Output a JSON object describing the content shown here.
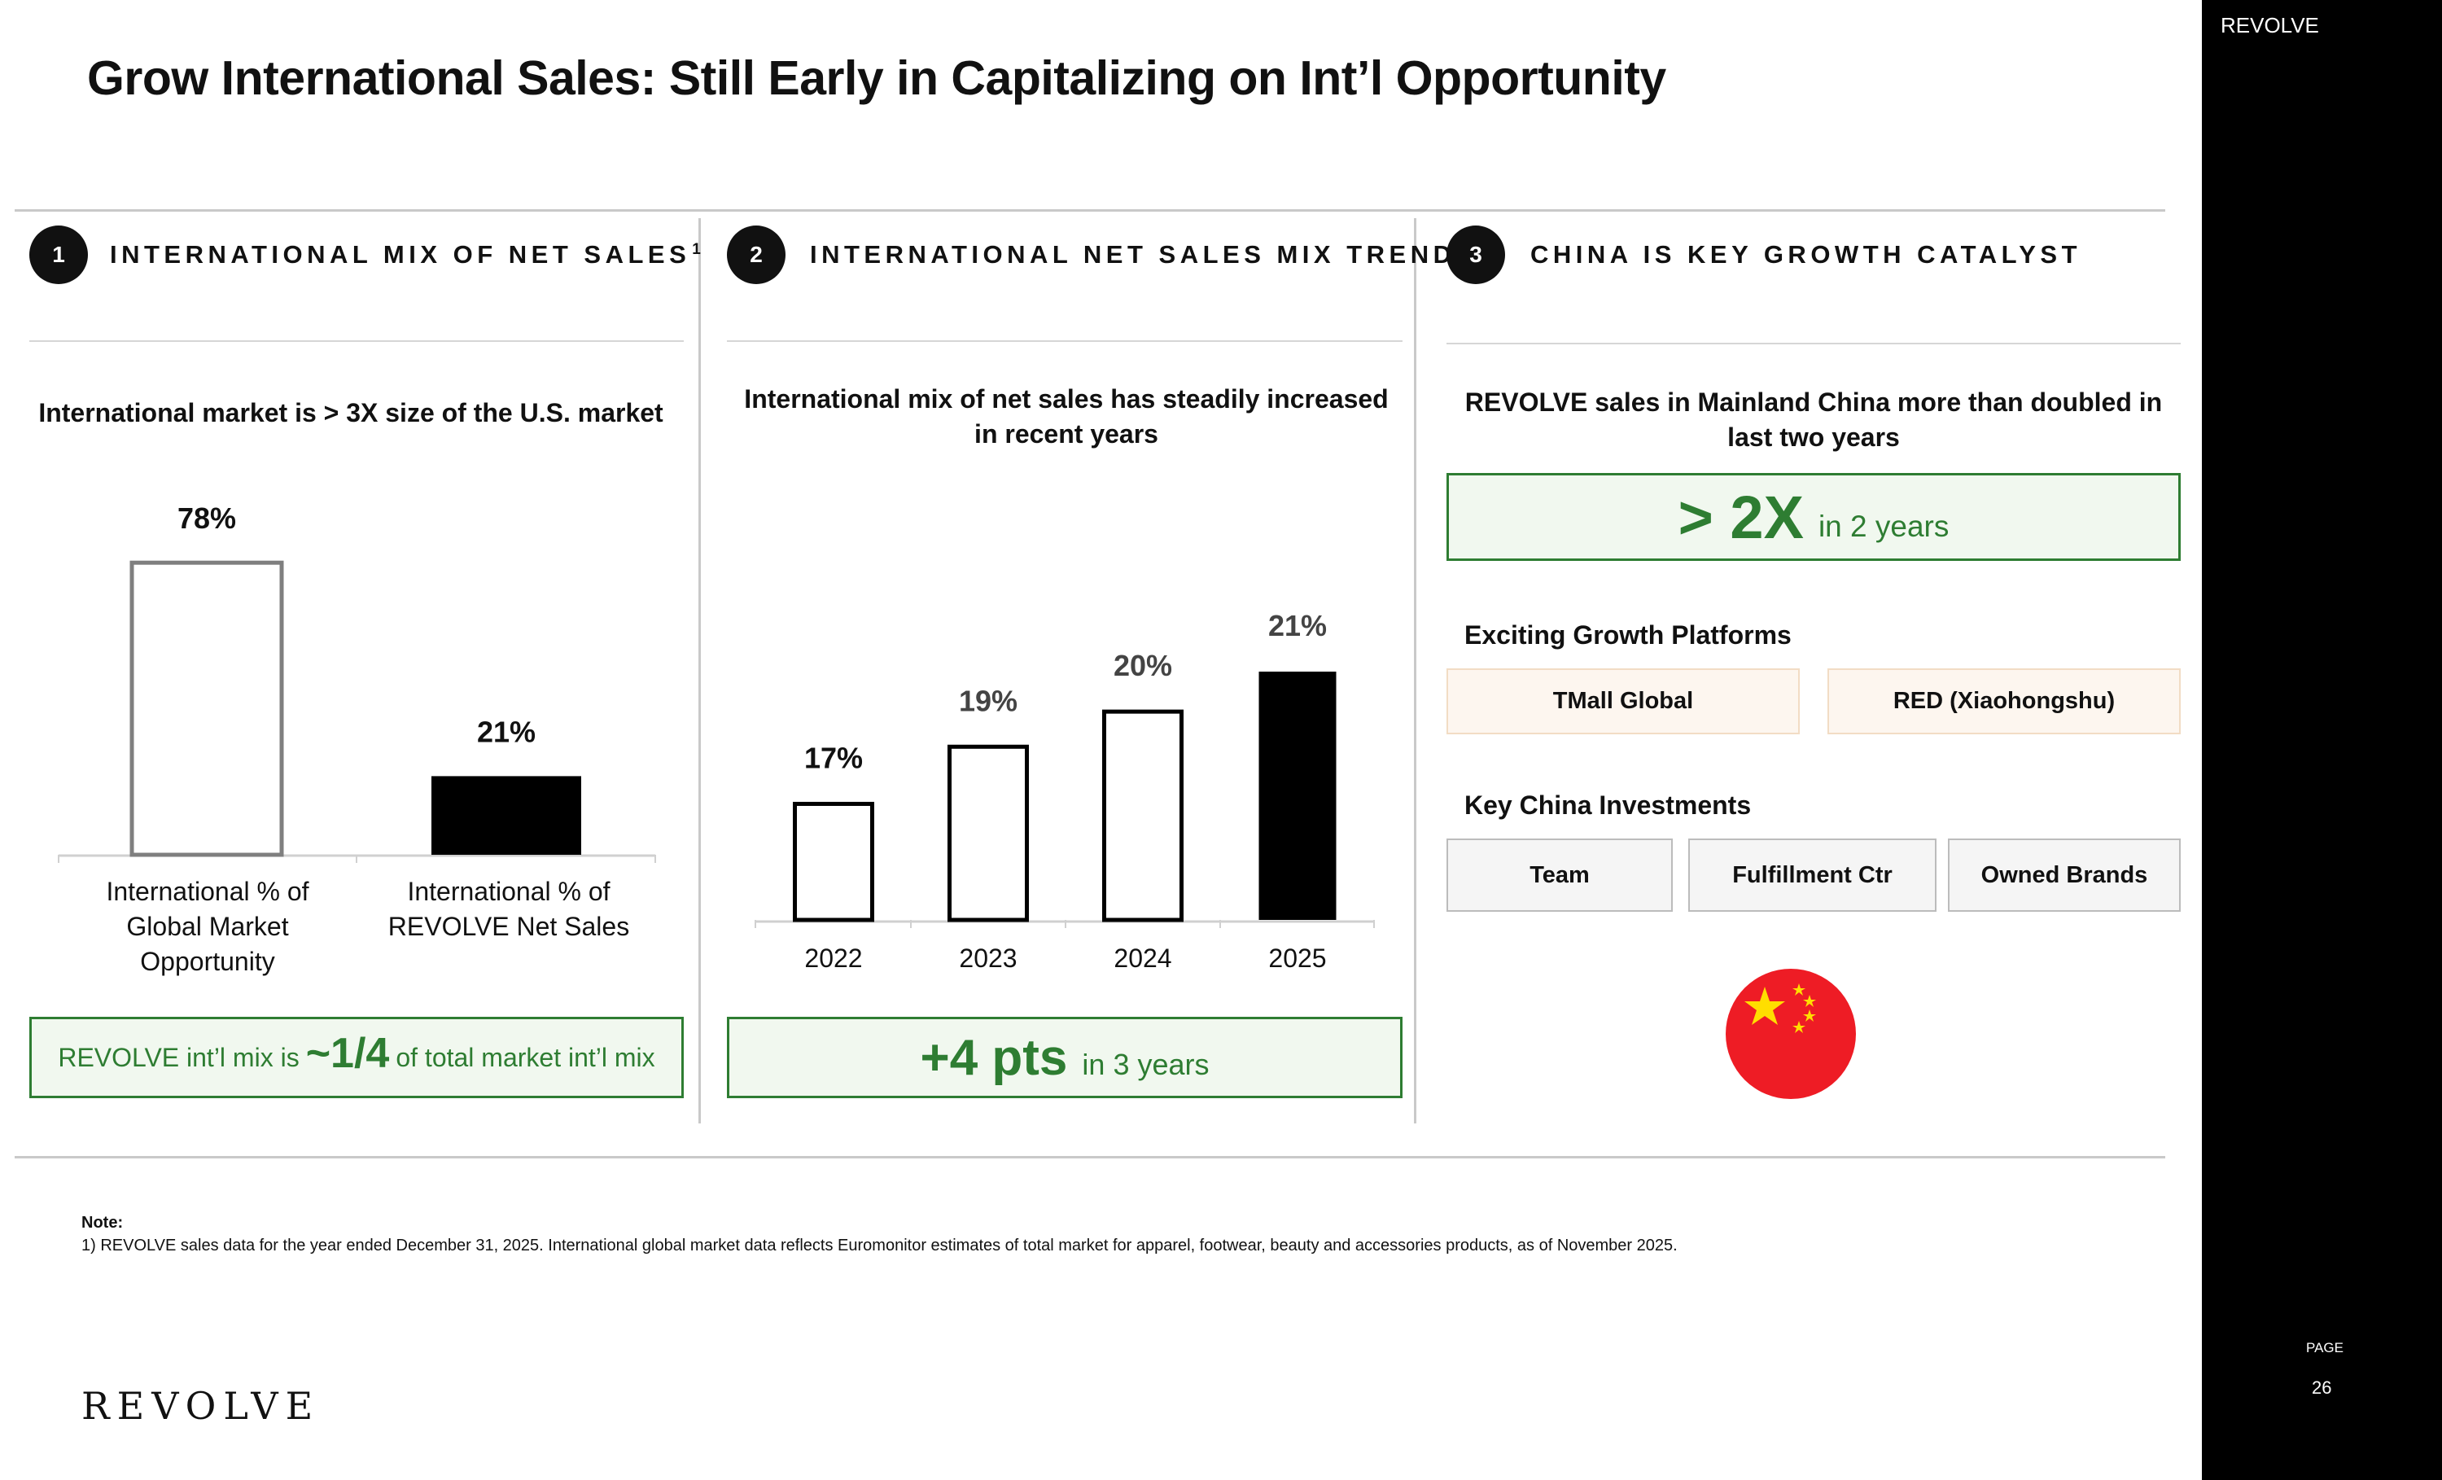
{
  "title": "Grow International Sales: Still Early in Capitalizing on Int’l Opportunity",
  "sidebar": {
    "brand": "REVOLVE",
    "page_label": "PAGE",
    "page_number": "26"
  },
  "sections": [
    {
      "number": "1",
      "heading": "INTERNATIONAL MIX OF NET SALES",
      "heading_footnote": "1",
      "subtitle": "International market is > 3X size of the U.S. market",
      "callout": {
        "prefix": "REVOLVE int’l mix is",
        "emphasis": "~1/4",
        "suffix": "of total market int’l mix"
      }
    },
    {
      "number": "2",
      "heading": "INTERNATIONAL NET SALES MIX TREND",
      "subtitle": "International mix of net sales has steadily increased in recent years",
      "callout": {
        "emphasis": "+4 pts",
        "suffix": "in 3 years"
      }
    },
    {
      "number": "3",
      "heading": "CHINA IS KEY GROWTH CATALYST",
      "subtitle": "REVOLVE sales in Mainland China more than doubled in last two years",
      "callout": {
        "emphasis": "> 2X",
        "suffix": "in 2 years"
      },
      "platforms_heading": "Exciting Growth Platforms",
      "platforms": [
        "TMall Global",
        "RED (Xiaohongshu)"
      ],
      "investments_heading": "Key China Investments",
      "investments": [
        "Team",
        "Fulfillment Ctr",
        "Owned Brands"
      ],
      "flag_icon": "china-flag-icon"
    }
  ],
  "chart_data": [
    {
      "type": "bar",
      "categories": [
        "International % of Global Market Opportunity",
        "International % of REVOLVE Net Sales"
      ],
      "values": [
        78,
        21
      ],
      "data_labels": [
        "78%",
        "21%"
      ],
      "unit": "%",
      "ylim": [
        0,
        100
      ],
      "colors": [
        "#ffffff",
        "#000000"
      ],
      "outline": "#7f7f7f"
    },
    {
      "type": "bar",
      "categories": [
        "2022",
        "2023",
        "2024",
        "2025"
      ],
      "values": [
        17,
        19,
        20,
        21
      ],
      "data_labels": [
        "17%",
        "19%",
        "20%",
        "21%"
      ],
      "unit": "%",
      "ylim": [
        0,
        21
      ],
      "colors": [
        "#ffffff",
        "#ffffff",
        "#ffffff",
        "#000000"
      ]
    }
  ],
  "note": {
    "label": "Note:",
    "text": "1) REVOLVE sales data for the year ended December 31, 2025. International global market data reflects Euromonitor estimates of total market for apparel, footwear, beauty and accessories products, as of November 2025."
  },
  "footer_logo": "REVOLVE",
  "colors": {
    "accent_green": "#2e7d32",
    "green_fill": "#f1f8ef",
    "flag_red": "#ee1c25",
    "flag_yellow": "#ffde00"
  }
}
